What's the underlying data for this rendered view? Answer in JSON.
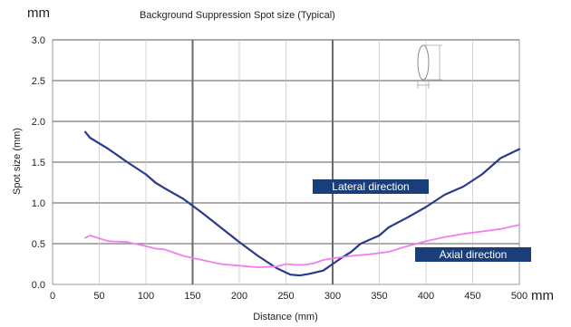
{
  "chart_data": {
    "type": "line",
    "title": "Background Suppression Spot size (Typical)",
    "ylabel": "Spot size (mm)",
    "xlabel": "Distance (mm)",
    "y_unit": "mm",
    "x_unit": "mm",
    "xlim": [
      0,
      500
    ],
    "ylim": [
      0.0,
      3.0
    ],
    "x_ticks": [
      "0",
      "50",
      "100",
      "150",
      "200",
      "250",
      "300",
      "350",
      "400",
      "450",
      "500"
    ],
    "y_ticks": [
      "0.0",
      "0.5",
      "1.0",
      "1.5",
      "2.0",
      "2.5",
      "3.0"
    ],
    "grid": true,
    "series": [
      {
        "name": "Lateral direction",
        "color": "#2b3a8c",
        "x": [
          35,
          40,
          60,
          80,
          100,
          110,
          120,
          140,
          160,
          180,
          200,
          220,
          240,
          255,
          265,
          275,
          290,
          300,
          310,
          320,
          330,
          340,
          350,
          360,
          380,
          400,
          420,
          440,
          460,
          480,
          500
        ],
        "y": [
          1.87,
          1.8,
          1.66,
          1.5,
          1.35,
          1.25,
          1.18,
          1.05,
          0.88,
          0.7,
          0.52,
          0.35,
          0.2,
          0.12,
          0.11,
          0.13,
          0.17,
          0.25,
          0.33,
          0.4,
          0.5,
          0.55,
          0.6,
          0.7,
          0.82,
          0.95,
          1.1,
          1.2,
          1.35,
          1.55,
          1.66
        ]
      },
      {
        "name": "Axial direction",
        "color": "#f07ef0",
        "x": [
          35,
          40,
          60,
          80,
          100,
          110,
          120,
          140,
          160,
          180,
          200,
          220,
          240,
          250,
          260,
          270,
          280,
          290,
          300,
          320,
          340,
          360,
          380,
          400,
          420,
          440,
          460,
          480,
          500
        ],
        "y": [
          0.57,
          0.6,
          0.53,
          0.52,
          0.47,
          0.44,
          0.43,
          0.35,
          0.3,
          0.25,
          0.23,
          0.21,
          0.22,
          0.25,
          0.24,
          0.24,
          0.26,
          0.3,
          0.32,
          0.35,
          0.37,
          0.4,
          0.47,
          0.53,
          0.58,
          0.62,
          0.65,
          0.68,
          0.73
        ]
      }
    ]
  }
}
